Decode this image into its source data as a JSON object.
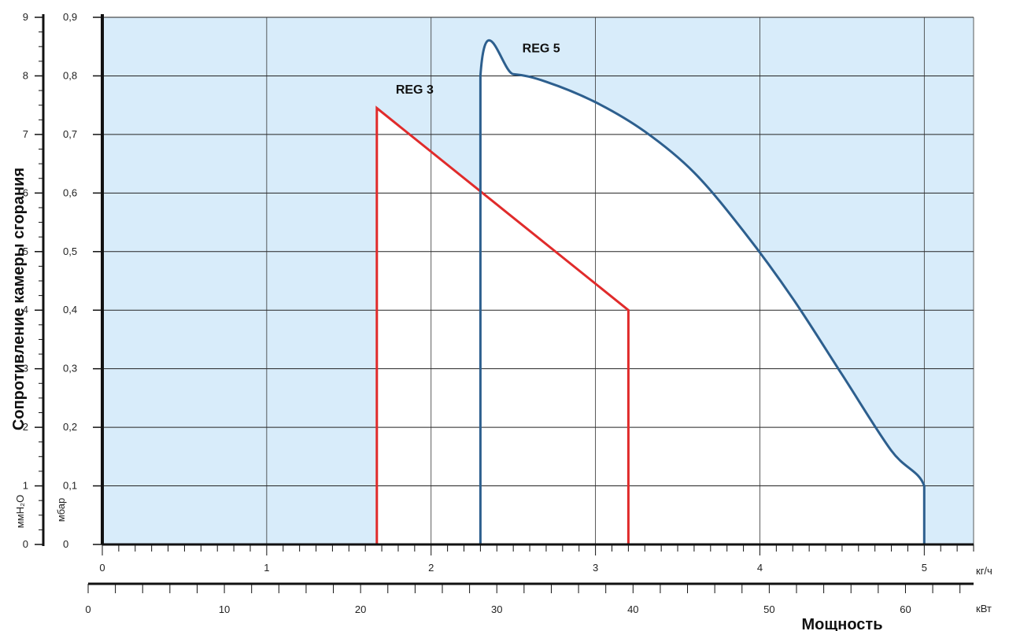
{
  "chart_data": {
    "type": "line",
    "title": "",
    "ylabel": "Сопротивление камеры сгорания",
    "xlabel": "Мощность",
    "x_units": "кг/ч",
    "x2_units": "кВт",
    "y_units_mmh2o": "ммH₂O",
    "y_units_mbar": "мбар",
    "xlim": [
      0,
      5.3
    ],
    "x2lim": [
      0,
      65
    ],
    "ylim": [
      0,
      0.9
    ],
    "y2lim": [
      0,
      9
    ],
    "x_ticks": [
      0,
      1,
      2,
      3,
      4,
      5
    ],
    "x_tick_labels": [
      "0",
      "1",
      "2",
      "3",
      "4",
      "5"
    ],
    "x2_ticks": [
      0,
      10,
      20,
      30,
      40,
      50,
      60
    ],
    "x2_tick_labels": [
      "0",
      "10",
      "20",
      "30",
      "40",
      "50",
      "60"
    ],
    "y_ticks": [
      0,
      0.1,
      0.2,
      0.3,
      0.4,
      0.5,
      0.6,
      0.7,
      0.8,
      0.9
    ],
    "y_tick_labels": [
      "0",
      "0,1",
      "0,2",
      "0,3",
      "0,4",
      "0,5",
      "0,6",
      "0,7",
      "0,8",
      "0,9"
    ],
    "y2_ticks": [
      0,
      1,
      2,
      3,
      4,
      5,
      6,
      7,
      8,
      9
    ],
    "y2_tick_labels": [
      "0",
      "1",
      "2",
      "3",
      "4",
      "5",
      "6",
      "7",
      "8",
      "9"
    ],
    "grid": true,
    "background_color": "#d8ecfa",
    "series": [
      {
        "name": "REG 3",
        "color": "#e02b2b",
        "points": [
          [
            1.67,
            0
          ],
          [
            1.67,
            0.745
          ],
          [
            3.2,
            0.4
          ],
          [
            3.2,
            0
          ]
        ]
      },
      {
        "name": "REG 5",
        "color": "#2d5f8e",
        "points": [
          [
            2.3,
            0
          ],
          [
            2.3,
            0.8
          ],
          [
            2.5,
            0.803
          ],
          [
            2.7,
            0.79
          ],
          [
            3.0,
            0.755
          ],
          [
            3.3,
            0.705
          ],
          [
            3.6,
            0.635
          ],
          [
            3.9,
            0.535
          ],
          [
            4.2,
            0.42
          ],
          [
            4.5,
            0.29
          ],
          [
            4.8,
            0.16
          ],
          [
            5.0,
            0.1
          ],
          [
            5.0,
            0
          ]
        ]
      }
    ],
    "annotations": [
      {
        "text": "REG 3",
        "x": 1.9,
        "y": 0.77
      },
      {
        "text": "REG 5",
        "x": 2.67,
        "y": 0.84
      }
    ]
  }
}
